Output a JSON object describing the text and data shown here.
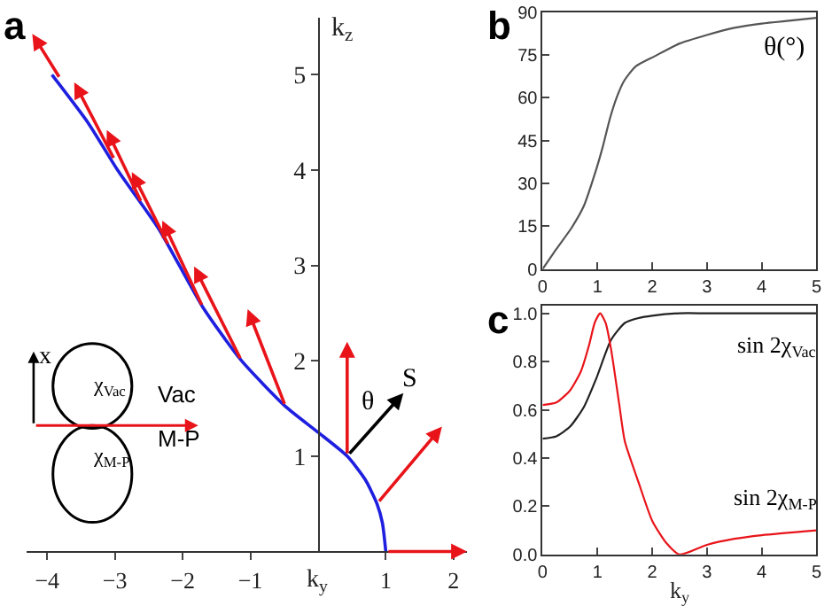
{
  "chart_data": [
    {
      "type": "line",
      "title": "a",
      "xlabel": "k$_{y}$",
      "ylabel": "k$_{z}$",
      "xlim": [
        -4.3,
        2.2
      ],
      "ylim": [
        0,
        5.6
      ],
      "xticks": [
        {
          "value": -4,
          "label": "−4"
        },
        {
          "value": -3,
          "label": "−3"
        },
        {
          "value": -2,
          "label": "−2"
        },
        {
          "value": -1,
          "label": "−1"
        },
        1,
        2
      ],
      "yticks": [
        1,
        2,
        3,
        4,
        5
      ],
      "series": [
        {
          "color": "#1f1fe0",
          "x": [
            1.0,
            0.95,
            0.87,
            0.7,
            0.43,
            0.0,
            -0.48,
            -1.13,
            -1.7,
            -2.35,
            -2.96,
            -3.4,
            -3.93
          ],
          "values": [
            0.0,
            0.3,
            0.5,
            0.75,
            1.0,
            1.25,
            1.52,
            2.0,
            2.56,
            3.38,
            4.0,
            4.5,
            5.0
          ]
        }
      ],
      "annotations": [
        "θ",
        "S⃗",
        "x",
        "χ$_{Vac}$",
        "Vac",
        "M-P",
        "χ$_{M-P}$"
      ]
    },
    {
      "type": "line",
      "title": "b",
      "xlim": [
        0,
        5
      ],
      "ylim": [
        0,
        90
      ],
      "xticks": [
        0,
        1,
        2,
        3,
        4,
        5
      ],
      "yticks": [
        0,
        15,
        30,
        45,
        60,
        75,
        90
      ],
      "series": [
        {
          "color": "#555555",
          "x": [
            0,
            0.25,
            0.53,
            0.75,
            0.98,
            1.1,
            1.23,
            1.35,
            1.49,
            1.7,
            2.04,
            2.5,
            3,
            3.5,
            4,
            4.5,
            5
          ],
          "values": [
            0,
            7,
            14.5,
            22,
            35,
            43,
            52.8,
            60,
            66,
            71,
            74.5,
            79,
            82,
            84.5,
            86,
            87,
            88
          ]
        }
      ],
      "annotations": [
        "θ(°)"
      ]
    },
    {
      "type": "line",
      "title": "c",
      "xlabel": "k$_{y}$",
      "xlim": [
        0,
        5
      ],
      "ylim": [
        0,
        1.03
      ],
      "xticks": [
        0,
        1,
        2,
        3,
        4,
        5
      ],
      "yticks": [
        {
          "value": 0,
          "label": "0.0"
        },
        0.2,
        0.4,
        0.6,
        0.8,
        {
          "value": 1,
          "label": "1.0"
        }
      ],
      "series": [
        {
          "name": "sin 2χ$_{Vac}$",
          "color": "#222222",
          "x": [
            0,
            0.25,
            0.5,
            0.75,
            0.98,
            1.25,
            1.5,
            1.75,
            2,
            2.5,
            3,
            4,
            5
          ],
          "values": [
            0.48,
            0.49,
            0.53,
            0.61,
            0.73,
            0.89,
            0.96,
            0.98,
            0.99,
            1.0,
            1.0,
            1.0,
            1.0
          ]
        },
        {
          "name": "sin 2χ$_{M-P}$",
          "color": "#e8141a",
          "x": [
            0,
            0.25,
            0.5,
            0.7,
            0.85,
            0.95,
            1.05,
            1.15,
            1.25,
            1.4,
            1.5,
            1.75,
            2,
            2.25,
            2.5,
            3,
            3.5,
            4,
            5
          ],
          "values": [
            0.62,
            0.63,
            0.68,
            0.76,
            0.87,
            0.96,
            1.0,
            0.96,
            0.85,
            0.62,
            0.47,
            0.3,
            0.14,
            0.05,
            0.0,
            0.04,
            0.065,
            0.08,
            0.1
          ]
        }
      ]
    }
  ]
}
